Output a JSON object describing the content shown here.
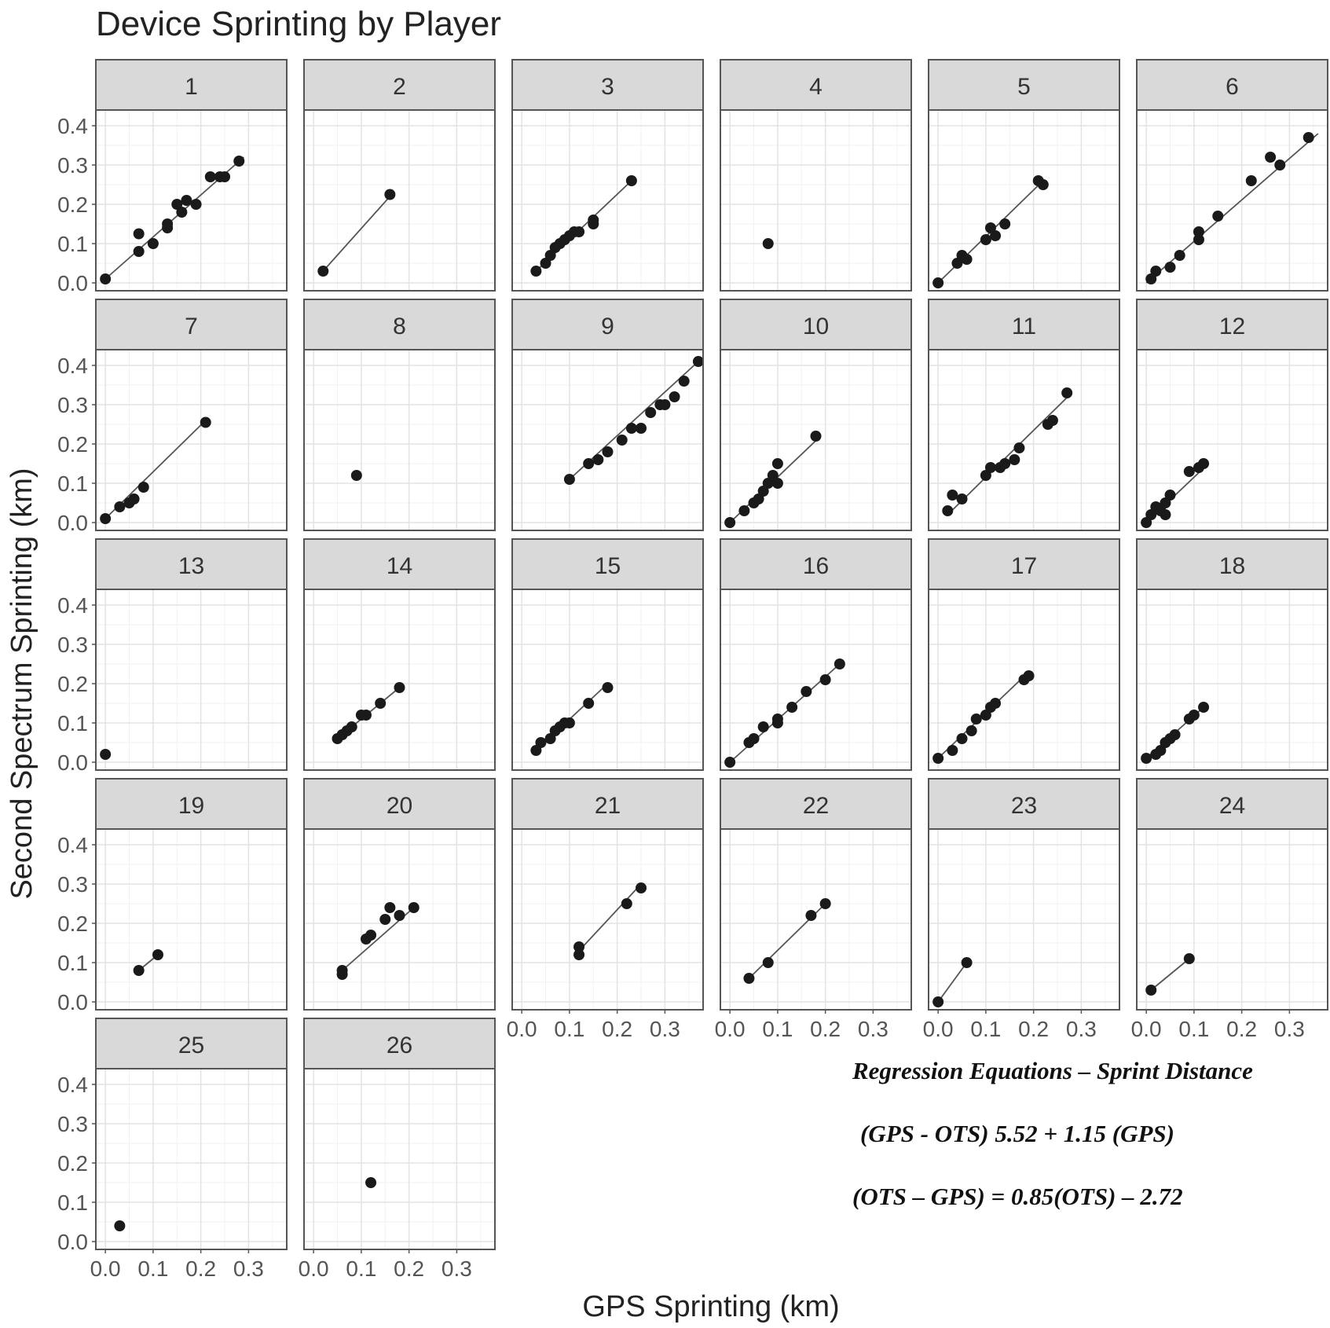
{
  "title": "Device Sprinting by Player",
  "xlabel": "GPS Sprinting (km)",
  "ylabel": "Second Spectrum Sprinting (km)",
  "colors": {
    "strip": "#d9d9d9",
    "border": "#555555",
    "point": "#1a1a1a",
    "grid_major": "#e3e3e3",
    "grid_minor": "#f2f2f2"
  },
  "regression_notes": {
    "heading": "Regression Equations – Sprint Distance",
    "line1": "(GPS - OTS) 5.52 + 1.15 (GPS)",
    "line2": "(OTS – GPS) = 0.85(OTS) – 2.72"
  },
  "chart_data": {
    "type": "scatter",
    "facet": "player",
    "ncol": 6,
    "xlim": [
      -0.02,
      0.38
    ],
    "ylim": [
      -0.02,
      0.44
    ],
    "x_ticks": [
      0.0,
      0.1,
      0.2,
      0.3
    ],
    "y_ticks": [
      0.0,
      0.1,
      0.2,
      0.3,
      0.4
    ],
    "x_tick_labels": [
      "0.0",
      "0.1",
      "0.2",
      "0.3"
    ],
    "y_tick_labels": [
      "0.0",
      "0.1",
      "0.2",
      "0.3",
      "0.4"
    ],
    "panels": [
      {
        "label": "1",
        "line": [
          [
            0.0,
            0.01
          ],
          [
            0.29,
            0.32
          ]
        ],
        "points": [
          [
            0.0,
            0.01
          ],
          [
            0.07,
            0.08
          ],
          [
            0.07,
            0.125
          ],
          [
            0.1,
            0.1
          ],
          [
            0.13,
            0.14
          ],
          [
            0.13,
            0.15
          ],
          [
            0.15,
            0.2
          ],
          [
            0.16,
            0.18
          ],
          [
            0.17,
            0.21
          ],
          [
            0.19,
            0.2
          ],
          [
            0.22,
            0.27
          ],
          [
            0.24,
            0.27
          ],
          [
            0.25,
            0.27
          ],
          [
            0.28,
            0.31
          ]
        ]
      },
      {
        "label": "2",
        "line": [
          [
            0.02,
            0.03
          ],
          [
            0.16,
            0.22
          ]
        ],
        "points": [
          [
            0.02,
            0.03
          ],
          [
            0.16,
            0.225
          ]
        ]
      },
      {
        "label": "3",
        "line": [
          [
            0.03,
            0.03
          ],
          [
            0.23,
            0.26
          ]
        ],
        "points": [
          [
            0.03,
            0.03
          ],
          [
            0.05,
            0.05
          ],
          [
            0.06,
            0.07
          ],
          [
            0.07,
            0.09
          ],
          [
            0.08,
            0.1
          ],
          [
            0.09,
            0.11
          ],
          [
            0.1,
            0.12
          ],
          [
            0.11,
            0.13
          ],
          [
            0.12,
            0.13
          ],
          [
            0.15,
            0.16
          ],
          [
            0.15,
            0.15
          ],
          [
            0.23,
            0.26
          ]
        ]
      },
      {
        "label": "4",
        "line": [],
        "points": [
          [
            0.08,
            0.1
          ]
        ]
      },
      {
        "label": "5",
        "line": [
          [
            0.0,
            0.0
          ],
          [
            0.22,
            0.26
          ]
        ],
        "points": [
          [
            0.0,
            0.0
          ],
          [
            0.04,
            0.05
          ],
          [
            0.05,
            0.07
          ],
          [
            0.06,
            0.06
          ],
          [
            0.1,
            0.11
          ],
          [
            0.11,
            0.14
          ],
          [
            0.12,
            0.12
          ],
          [
            0.14,
            0.15
          ],
          [
            0.21,
            0.26
          ],
          [
            0.22,
            0.25
          ]
        ]
      },
      {
        "label": "6",
        "line": [
          [
            0.0,
            0.0
          ],
          [
            0.36,
            0.38
          ]
        ],
        "points": [
          [
            0.01,
            0.01
          ],
          [
            0.02,
            0.03
          ],
          [
            0.05,
            0.04
          ],
          [
            0.07,
            0.07
          ],
          [
            0.11,
            0.13
          ],
          [
            0.11,
            0.11
          ],
          [
            0.15,
            0.17
          ],
          [
            0.22,
            0.26
          ],
          [
            0.26,
            0.32
          ],
          [
            0.28,
            0.3
          ],
          [
            0.34,
            0.37
          ]
        ]
      },
      {
        "label": "7",
        "line": [
          [
            0.0,
            0.01
          ],
          [
            0.21,
            0.26
          ]
        ],
        "points": [
          [
            0.0,
            0.01
          ],
          [
            0.03,
            0.04
          ],
          [
            0.05,
            0.05
          ],
          [
            0.06,
            0.06
          ],
          [
            0.08,
            0.09
          ],
          [
            0.21,
            0.255
          ]
        ]
      },
      {
        "label": "8",
        "line": [],
        "points": [
          [
            0.09,
            0.12
          ]
        ]
      },
      {
        "label": "9",
        "line": [
          [
            0.1,
            0.11
          ],
          [
            0.37,
            0.41
          ]
        ],
        "points": [
          [
            0.1,
            0.11
          ],
          [
            0.14,
            0.15
          ],
          [
            0.16,
            0.16
          ],
          [
            0.18,
            0.18
          ],
          [
            0.21,
            0.21
          ],
          [
            0.23,
            0.24
          ],
          [
            0.25,
            0.24
          ],
          [
            0.27,
            0.28
          ],
          [
            0.29,
            0.3
          ],
          [
            0.3,
            0.3
          ],
          [
            0.32,
            0.32
          ],
          [
            0.34,
            0.36
          ],
          [
            0.37,
            0.41
          ]
        ]
      },
      {
        "label": "10",
        "line": [
          [
            0.0,
            0.0
          ],
          [
            0.19,
            0.22
          ]
        ],
        "points": [
          [
            0.0,
            0.0
          ],
          [
            0.03,
            0.03
          ],
          [
            0.05,
            0.05
          ],
          [
            0.06,
            0.06
          ],
          [
            0.07,
            0.08
          ],
          [
            0.08,
            0.1
          ],
          [
            0.09,
            0.12
          ],
          [
            0.1,
            0.1
          ],
          [
            0.1,
            0.15
          ],
          [
            0.18,
            0.22
          ]
        ]
      },
      {
        "label": "11",
        "line": [
          [
            0.02,
            0.02
          ],
          [
            0.28,
            0.33
          ]
        ],
        "points": [
          [
            0.02,
            0.03
          ],
          [
            0.03,
            0.07
          ],
          [
            0.05,
            0.06
          ],
          [
            0.1,
            0.12
          ],
          [
            0.11,
            0.14
          ],
          [
            0.13,
            0.14
          ],
          [
            0.14,
            0.15
          ],
          [
            0.16,
            0.16
          ],
          [
            0.17,
            0.19
          ],
          [
            0.23,
            0.25
          ],
          [
            0.24,
            0.26
          ],
          [
            0.27,
            0.33
          ]
        ]
      },
      {
        "label": "12",
        "line": [
          [
            0.0,
            0.0
          ],
          [
            0.13,
            0.15
          ]
        ],
        "points": [
          [
            0.0,
            0.0
          ],
          [
            0.01,
            0.02
          ],
          [
            0.02,
            0.04
          ],
          [
            0.03,
            0.03
          ],
          [
            0.04,
            0.02
          ],
          [
            0.04,
            0.05
          ],
          [
            0.05,
            0.07
          ],
          [
            0.09,
            0.13
          ],
          [
            0.11,
            0.14
          ],
          [
            0.12,
            0.15
          ]
        ]
      },
      {
        "label": "13",
        "line": [],
        "points": [
          [
            0.0,
            0.02
          ]
        ]
      },
      {
        "label": "14",
        "line": [
          [
            0.05,
            0.06
          ],
          [
            0.18,
            0.19
          ]
        ],
        "points": [
          [
            0.05,
            0.06
          ],
          [
            0.06,
            0.07
          ],
          [
            0.07,
            0.08
          ],
          [
            0.08,
            0.09
          ],
          [
            0.1,
            0.12
          ],
          [
            0.11,
            0.12
          ],
          [
            0.14,
            0.15
          ],
          [
            0.18,
            0.19
          ]
        ]
      },
      {
        "label": "15",
        "line": [
          [
            0.03,
            0.03
          ],
          [
            0.18,
            0.2
          ]
        ],
        "points": [
          [
            0.03,
            0.03
          ],
          [
            0.04,
            0.05
          ],
          [
            0.06,
            0.06
          ],
          [
            0.07,
            0.08
          ],
          [
            0.08,
            0.09
          ],
          [
            0.09,
            0.1
          ],
          [
            0.1,
            0.1
          ],
          [
            0.14,
            0.15
          ],
          [
            0.18,
            0.19
          ]
        ]
      },
      {
        "label": "16",
        "line": [
          [
            0.0,
            0.0
          ],
          [
            0.23,
            0.25
          ]
        ],
        "points": [
          [
            0.0,
            0.0
          ],
          [
            0.04,
            0.05
          ],
          [
            0.05,
            0.06
          ],
          [
            0.07,
            0.09
          ],
          [
            0.1,
            0.1
          ],
          [
            0.1,
            0.11
          ],
          [
            0.13,
            0.14
          ],
          [
            0.16,
            0.18
          ],
          [
            0.2,
            0.21
          ],
          [
            0.23,
            0.25
          ]
        ]
      },
      {
        "label": "17",
        "line": [
          [
            0.0,
            0.01
          ],
          [
            0.19,
            0.23
          ]
        ],
        "points": [
          [
            0.0,
            0.01
          ],
          [
            0.03,
            0.03
          ],
          [
            0.05,
            0.06
          ],
          [
            0.07,
            0.08
          ],
          [
            0.08,
            0.11
          ],
          [
            0.1,
            0.12
          ],
          [
            0.11,
            0.14
          ],
          [
            0.12,
            0.15
          ],
          [
            0.18,
            0.21
          ],
          [
            0.19,
            0.22
          ]
        ]
      },
      {
        "label": "18",
        "line": [
          [
            0.0,
            0.01
          ],
          [
            0.12,
            0.14
          ]
        ],
        "points": [
          [
            0.0,
            0.01
          ],
          [
            0.02,
            0.02
          ],
          [
            0.03,
            0.03
          ],
          [
            0.04,
            0.05
          ],
          [
            0.05,
            0.06
          ],
          [
            0.06,
            0.07
          ],
          [
            0.09,
            0.11
          ],
          [
            0.1,
            0.12
          ],
          [
            0.12,
            0.14
          ]
        ]
      },
      {
        "label": "19",
        "line": [
          [
            0.07,
            0.08
          ],
          [
            0.11,
            0.12
          ]
        ],
        "points": [
          [
            0.07,
            0.08
          ],
          [
            0.11,
            0.12
          ]
        ]
      },
      {
        "label": "20",
        "line": [
          [
            0.06,
            0.08
          ],
          [
            0.21,
            0.24
          ]
        ],
        "points": [
          [
            0.06,
            0.07
          ],
          [
            0.06,
            0.08
          ],
          [
            0.11,
            0.16
          ],
          [
            0.12,
            0.17
          ],
          [
            0.15,
            0.21
          ],
          [
            0.16,
            0.24
          ],
          [
            0.18,
            0.22
          ],
          [
            0.21,
            0.24
          ]
        ]
      },
      {
        "label": "21",
        "line": [
          [
            0.12,
            0.13
          ],
          [
            0.25,
            0.3
          ]
        ],
        "points": [
          [
            0.12,
            0.14
          ],
          [
            0.12,
            0.12
          ],
          [
            0.22,
            0.25
          ],
          [
            0.25,
            0.29
          ]
        ]
      },
      {
        "label": "22",
        "line": [
          [
            0.04,
            0.06
          ],
          [
            0.2,
            0.25
          ]
        ],
        "points": [
          [
            0.04,
            0.06
          ],
          [
            0.08,
            0.1
          ],
          [
            0.17,
            0.22
          ],
          [
            0.2,
            0.25
          ]
        ]
      },
      {
        "label": "23",
        "line": [
          [
            0.0,
            0.0
          ],
          [
            0.06,
            0.1
          ]
        ],
        "points": [
          [
            0.0,
            0.0
          ],
          [
            0.06,
            0.1
          ]
        ]
      },
      {
        "label": "24",
        "line": [
          [
            0.01,
            0.03
          ],
          [
            0.09,
            0.11
          ]
        ],
        "points": [
          [
            0.01,
            0.03
          ],
          [
            0.09,
            0.11
          ]
        ]
      },
      {
        "label": "25",
        "line": [],
        "points": [
          [
            0.03,
            0.04
          ]
        ]
      },
      {
        "label": "26",
        "line": [],
        "points": [
          [
            0.12,
            0.15
          ]
        ]
      }
    ]
  }
}
